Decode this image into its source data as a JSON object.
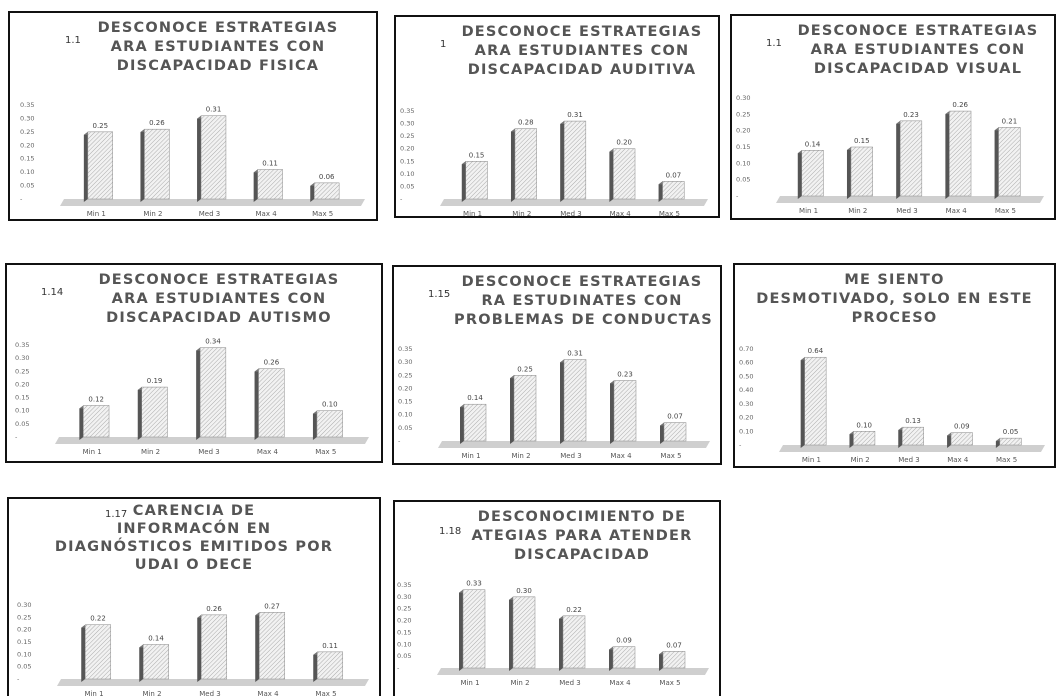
{
  "chart_data": [
    {
      "type": "bar",
      "number": "1.1",
      "title_lines": [
        "DESCONOCE ESTRATEGIAS",
        "ARA ESTUDIANTES CON",
        "DISCAPACIDAD FISICA"
      ],
      "categories": [
        "Min 1",
        "Min 2",
        "Med 3",
        "Max 4",
        "Max 5"
      ],
      "values": [
        0.25,
        0.26,
        0.31,
        0.11,
        0.06
      ],
      "labels": [
        "0.25",
        "0.26",
        "0.31",
        "0.11",
        "0.06"
      ],
      "yticks": [
        "0.35",
        "0.30",
        "0.25",
        "0.20",
        "0.15",
        "0.10",
        "0.05",
        "-"
      ],
      "ylim": [
        0,
        0.35
      ]
    },
    {
      "type": "bar",
      "number": "1",
      "title_lines": [
        "DESCONOCE ESTRATEGIAS",
        "ARA ESTUDIANTES CON",
        "DISCAPACIDAD AUDITIVA"
      ],
      "categories": [
        "Min 1",
        "Min 2",
        "Med 3",
        "Max 4",
        "Max 5"
      ],
      "values": [
        0.15,
        0.28,
        0.31,
        0.2,
        0.07
      ],
      "labels": [
        "0.15",
        "0.28",
        "0.31",
        "0.20",
        "0.07"
      ],
      "yticks": [
        "0.35",
        "0.30",
        "0.25",
        "0.20",
        "0.15",
        "0.10",
        "0.05",
        "-"
      ],
      "ylim": [
        0,
        0.35
      ]
    },
    {
      "type": "bar",
      "number": "1.1",
      "title_lines": [
        "DESCONOCE ESTRATEGIAS",
        "ARA ESTUDIANTES CON",
        "DISCAPACIDAD VISUAL"
      ],
      "categories": [
        "Min 1",
        "Min 2",
        "Med 3",
        "Max 4",
        "Max 5"
      ],
      "values": [
        0.14,
        0.15,
        0.23,
        0.26,
        0.21
      ],
      "labels": [
        "0.14",
        "0.15",
        "0.23",
        "0.26",
        "0.21"
      ],
      "yticks": [
        "0.30",
        "0.25",
        "0.20",
        "0.15",
        "0.10",
        "0.05",
        "-"
      ],
      "ylim": [
        0,
        0.3
      ]
    },
    {
      "type": "bar",
      "number": "1.14",
      "title_lines": [
        "DESCONOCE ESTRATEGIAS",
        "ARA ESTUDIANTES CON",
        "DISCAPACIDAD AUTISMO"
      ],
      "categories": [
        "Min 1",
        "Min 2",
        "Med 3",
        "Max 4",
        "Max 5"
      ],
      "values": [
        0.12,
        0.19,
        0.34,
        0.26,
        0.1
      ],
      "labels": [
        "0.12",
        "0.19",
        "0.34",
        "0.26",
        "0.10"
      ],
      "yticks": [
        "0.35",
        "0.30",
        "0.25",
        "0.20",
        "0.15",
        "0.10",
        "0.05",
        "-"
      ],
      "ylim": [
        0,
        0.35
      ]
    },
    {
      "type": "bar",
      "number": "1.15",
      "title_lines": [
        "DESCONOCE ESTRATEGIAS",
        "RA ESTUDINATES CON",
        "PROBLEMAS DE CONDUCTAS"
      ],
      "categories": [
        "Min 1",
        "Min 2",
        "Med 3",
        "Max 4",
        "Max 5"
      ],
      "values": [
        0.14,
        0.25,
        0.31,
        0.23,
        0.07
      ],
      "labels": [
        "0.14",
        "0.25",
        "0.31",
        "0.23",
        "0.07"
      ],
      "yticks": [
        "0.35",
        "0.30",
        "0.25",
        "0.20",
        "0.15",
        "0.10",
        "0.05",
        "-"
      ],
      "ylim": [
        0,
        0.35
      ]
    },
    {
      "type": "bar",
      "number": "",
      "title_lines": [
        "ME SIENTO",
        "DESMOTIVADO, SOLO EN ESTE",
        "PROCESO"
      ],
      "categories": [
        "Min 1",
        "Min 2",
        "Med 3",
        "Max 4",
        "Max 5"
      ],
      "values": [
        0.64,
        0.1,
        0.13,
        0.09,
        0.05
      ],
      "labels": [
        "0.64",
        "0.10",
        "0.13",
        "0.09",
        "0.05"
      ],
      "yticks": [
        "0.70",
        "0.60",
        "0.50",
        "0.40",
        "0.30",
        "0.20",
        "0.10",
        "-"
      ],
      "ylim": [
        0,
        0.7
      ]
    },
    {
      "type": "bar",
      "number": "1.17",
      "title_lines": [
        "CARENCIA DE",
        "INFORMACÓN EN",
        "DIAGNÓSTICOS EMITIDOS POR",
        "UDAI O DECE"
      ],
      "categories": [
        "Min 1",
        "Min 2",
        "Med 3",
        "Max 4",
        "Max 5"
      ],
      "values": [
        0.22,
        0.14,
        0.26,
        0.27,
        0.11
      ],
      "labels": [
        "0.22",
        "0.14",
        "0.26",
        "0.27",
        "0.11"
      ],
      "yticks": [
        "0.30",
        "0.25",
        "0.20",
        "0.15",
        "0.10",
        "0.05",
        "-"
      ],
      "ylim": [
        0,
        0.3
      ]
    },
    {
      "type": "bar",
      "number": "1.18",
      "title_lines": [
        "DESCONOCIMIENTO DE",
        "ATEGIAS PARA ATENDER",
        "DISCAPACIDAD"
      ],
      "categories": [
        "Min 1",
        "Min 2",
        "Med 3",
        "Max 4",
        "Max 5"
      ],
      "values": [
        0.33,
        0.3,
        0.22,
        0.09,
        0.07
      ],
      "labels": [
        "0.33",
        "0.30",
        "0.22",
        "0.09",
        "0.07"
      ],
      "yticks": [
        "0.35",
        "0.30",
        "0.25",
        "0.20",
        "0.15",
        "0.10",
        "0.05",
        "-"
      ],
      "ylim": [
        0,
        0.35
      ]
    }
  ]
}
